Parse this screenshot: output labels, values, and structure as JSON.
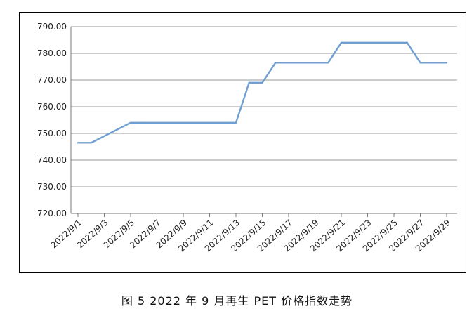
{
  "caption": "图 5  2022 年 9 月再生 PET 价格指数走势",
  "chart_data": {
    "type": "line",
    "title": "",
    "xlabel": "",
    "ylabel": "",
    "ylim": [
      720,
      790
    ],
    "ytick_step": 10,
    "ytick_decimals": 2,
    "grid": true,
    "line_color": "#6f9fd0",
    "x_tick_labels": [
      "2022/9/1",
      "2022/9/3",
      "2022/9/5",
      "2022/9/7",
      "2022/9/9",
      "2022/9/11",
      "2022/9/13",
      "2022/9/15",
      "2022/9/17",
      "2022/9/19",
      "2022/9/21",
      "2022/9/23",
      "2022/9/25",
      "2022/9/27",
      "2022/9/29"
    ],
    "points": [
      {
        "x": "2022/9/1",
        "y": 746.5
      },
      {
        "x": "2022/9/2",
        "y": 746.5
      },
      {
        "x": "2022/9/5",
        "y": 754
      },
      {
        "x": "2022/9/6",
        "y": 754
      },
      {
        "x": "2022/9/13",
        "y": 754
      },
      {
        "x": "2022/9/14",
        "y": 769
      },
      {
        "x": "2022/9/15",
        "y": 769
      },
      {
        "x": "2022/9/16",
        "y": 776.5
      },
      {
        "x": "2022/9/20",
        "y": 776.5
      },
      {
        "x": "2022/9/21",
        "y": 784
      },
      {
        "x": "2022/9/26",
        "y": 784
      },
      {
        "x": "2022/9/27",
        "y": 776.5
      },
      {
        "x": "2022/9/29",
        "y": 776.5
      }
    ]
  }
}
